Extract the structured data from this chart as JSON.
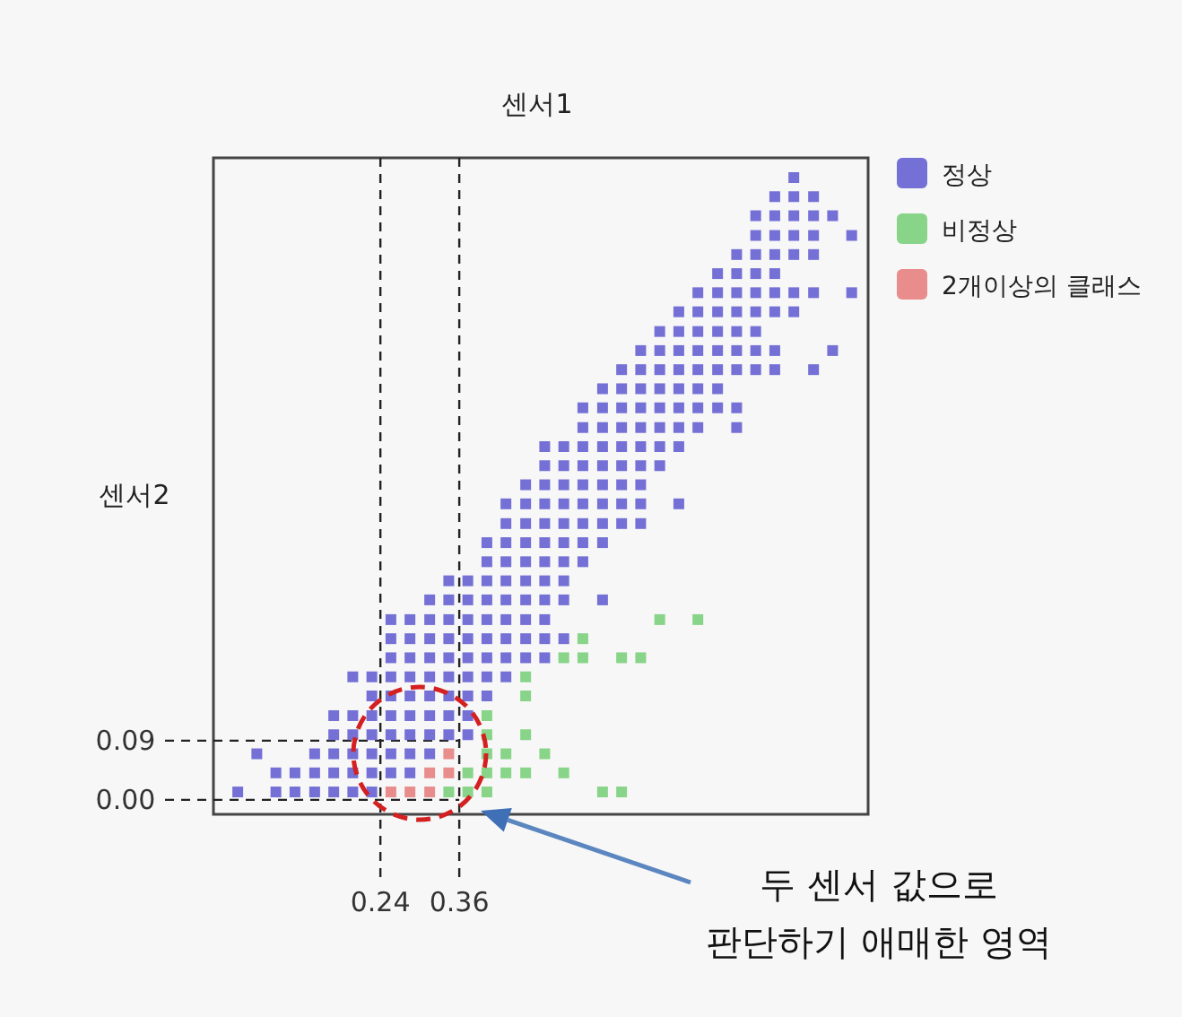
{
  "chart_data": {
    "type": "scatter",
    "xlabel": "센서1",
    "ylabel": "센서2",
    "xlim": [
      -0.014,
      0.982
    ],
    "ylim": [
      -0.022,
      0.976
    ],
    "xticks": [
      0.24,
      0.36
    ],
    "yticks": [
      {
        "value": 0,
        "label": "0.00"
      },
      0.09
    ],
    "grid": false,
    "legend": "right",
    "marker": "square",
    "ref_lines": [
      {
        "axis": "x",
        "value": 0.24,
        "line_style": "dashed"
      },
      {
        "axis": "x",
        "value": 0.36,
        "line_style": "dashed"
      },
      {
        "axis": "y",
        "value": 0.09,
        "line_style": "dashed"
      },
      {
        "axis": "y",
        "value": 0,
        "line_style": "dashed"
      }
    ],
    "annotations": [
      "두 센서 값으로\n판단하기 애매한 영역"
    ],
    "series": [
      {
        "name": "정상",
        "color": "#7470d6",
        "x": [
          0.023,
          0.081,
          0.11,
          0.14,
          0.169,
          0.198,
          0.227,
          0.081,
          0.11,
          0.14,
          0.169,
          0.198,
          0.227,
          0.256,
          0.285,
          0.052,
          0.14,
          0.169,
          0.198,
          0.227,
          0.256,
          0.285,
          0.315,
          0.169,
          0.198,
          0.227,
          0.256,
          0.285,
          0.315,
          0.344,
          0.373,
          0.169,
          0.198,
          0.227,
          0.256,
          0.285,
          0.315,
          0.344,
          0.373,
          0.227,
          0.256,
          0.285,
          0.315,
          0.344,
          0.373,
          0.402,
          0.198,
          0.227,
          0.256,
          0.285,
          0.315,
          0.344,
          0.373,
          0.402,
          0.431,
          0.256,
          0.285,
          0.315,
          0.344,
          0.373,
          0.402,
          0.431,
          0.461,
          0.49,
          0.256,
          0.285,
          0.315,
          0.344,
          0.373,
          0.402,
          0.431,
          0.461,
          0.49,
          0.519,
          0.256,
          0.285,
          0.315,
          0.344,
          0.373,
          0.402,
          0.431,
          0.461,
          0.49,
          0.315,
          0.344,
          0.373,
          0.402,
          0.431,
          0.461,
          0.49,
          0.519,
          0.578,
          0.344,
          0.373,
          0.402,
          0.431,
          0.461,
          0.49,
          0.519,
          0.402,
          0.431,
          0.461,
          0.49,
          0.519,
          0.548,
          0.402,
          0.431,
          0.461,
          0.49,
          0.519,
          0.548,
          0.578,
          0.431,
          0.461,
          0.49,
          0.519,
          0.548,
          0.578,
          0.607,
          0.636,
          0.431,
          0.461,
          0.49,
          0.519,
          0.548,
          0.578,
          0.607,
          0.636,
          0.694,
          0.461,
          0.49,
          0.519,
          0.548,
          0.578,
          0.607,
          0.636,
          0.49,
          0.519,
          0.548,
          0.578,
          0.607,
          0.636,
          0.665,
          0.49,
          0.519,
          0.548,
          0.578,
          0.607,
          0.636,
          0.665,
          0.694,
          0.548,
          0.578,
          0.607,
          0.636,
          0.665,
          0.694,
          0.723,
          0.782,
          0.548,
          0.578,
          0.607,
          0.636,
          0.665,
          0.694,
          0.723,
          0.753,
          0.782,
          0.578,
          0.607,
          0.636,
          0.665,
          0.694,
          0.723,
          0.753,
          0.607,
          0.636,
          0.665,
          0.694,
          0.723,
          0.753,
          0.782,
          0.811,
          0.84,
          0.899,
          0.636,
          0.665,
          0.694,
          0.723,
          0.753,
          0.782,
          0.811,
          0.84,
          0.928,
          0.665,
          0.694,
          0.723,
          0.753,
          0.782,
          0.811,
          0.694,
          0.723,
          0.753,
          0.782,
          0.811,
          0.84,
          0.869,
          0.723,
          0.753,
          0.782,
          0.811,
          0.84,
          0.869,
          0.899,
          0.957,
          0.753,
          0.782,
          0.811,
          0.84,
          0.782,
          0.811,
          0.84,
          0.869,
          0.899,
          0.811,
          0.84,
          0.869,
          0.899,
          0.957,
          0.811,
          0.84,
          0.869,
          0.899,
          0.928,
          0.84,
          0.869,
          0.899,
          0.869
        ],
        "values": [
          0.012,
          0.012,
          0.012,
          0.012,
          0.012,
          0.012,
          0.012,
          0.041,
          0.041,
          0.041,
          0.041,
          0.041,
          0.041,
          0.041,
          0.041,
          0.07,
          0.07,
          0.07,
          0.07,
          0.07,
          0.07,
          0.07,
          0.07,
          0.099,
          0.099,
          0.099,
          0.099,
          0.099,
          0.099,
          0.099,
          0.099,
          0.128,
          0.128,
          0.128,
          0.128,
          0.128,
          0.128,
          0.128,
          0.128,
          0.158,
          0.158,
          0.158,
          0.158,
          0.158,
          0.158,
          0.158,
          0.187,
          0.187,
          0.187,
          0.187,
          0.187,
          0.187,
          0.187,
          0.187,
          0.187,
          0.216,
          0.216,
          0.216,
          0.216,
          0.216,
          0.216,
          0.216,
          0.216,
          0.216,
          0.245,
          0.245,
          0.245,
          0.245,
          0.245,
          0.245,
          0.245,
          0.245,
          0.245,
          0.245,
          0.274,
          0.274,
          0.274,
          0.274,
          0.274,
          0.274,
          0.274,
          0.274,
          0.274,
          0.304,
          0.304,
          0.304,
          0.304,
          0.304,
          0.304,
          0.304,
          0.304,
          0.304,
          0.333,
          0.333,
          0.333,
          0.333,
          0.333,
          0.333,
          0.333,
          0.362,
          0.362,
          0.362,
          0.362,
          0.362,
          0.362,
          0.391,
          0.391,
          0.391,
          0.391,
          0.391,
          0.391,
          0.391,
          0.42,
          0.42,
          0.42,
          0.42,
          0.42,
          0.42,
          0.42,
          0.42,
          0.45,
          0.45,
          0.45,
          0.45,
          0.45,
          0.45,
          0.45,
          0.45,
          0.45,
          0.479,
          0.479,
          0.479,
          0.479,
          0.479,
          0.479,
          0.479,
          0.508,
          0.508,
          0.508,
          0.508,
          0.508,
          0.508,
          0.508,
          0.537,
          0.537,
          0.537,
          0.537,
          0.537,
          0.537,
          0.537,
          0.537,
          0.566,
          0.566,
          0.566,
          0.566,
          0.566,
          0.566,
          0.566,
          0.566,
          0.596,
          0.596,
          0.596,
          0.596,
          0.596,
          0.596,
          0.596,
          0.596,
          0.596,
          0.625,
          0.625,
          0.625,
          0.625,
          0.625,
          0.625,
          0.625,
          0.654,
          0.654,
          0.654,
          0.654,
          0.654,
          0.654,
          0.654,
          0.654,
          0.654,
          0.654,
          0.683,
          0.683,
          0.683,
          0.683,
          0.683,
          0.683,
          0.683,
          0.683,
          0.683,
          0.712,
          0.712,
          0.712,
          0.712,
          0.712,
          0.712,
          0.742,
          0.742,
          0.742,
          0.742,
          0.742,
          0.742,
          0.742,
          0.771,
          0.771,
          0.771,
          0.771,
          0.771,
          0.771,
          0.771,
          0.771,
          0.8,
          0.8,
          0.8,
          0.8,
          0.829,
          0.829,
          0.829,
          0.829,
          0.829,
          0.858,
          0.858,
          0.858,
          0.858,
          0.858,
          0.888,
          0.888,
          0.888,
          0.888,
          0.888,
          0.917,
          0.917,
          0.917,
          0.946
        ]
      },
      {
        "name": "비정상",
        "color": "#88d488",
        "x": [
          0.344,
          0.373,
          0.402,
          0.578,
          0.607,
          0.373,
          0.402,
          0.431,
          0.461,
          0.519,
          0.402,
          0.431,
          0.49,
          0.402,
          0.461,
          0.402,
          0.461,
          0.461,
          0.519,
          0.548,
          0.607,
          0.636,
          0.548,
          0.665,
          0.723
        ],
        "values": [
          0.012,
          0.012,
          0.012,
          0.012,
          0.012,
          0.041,
          0.041,
          0.041,
          0.041,
          0.041,
          0.07,
          0.07,
          0.07,
          0.099,
          0.099,
          0.128,
          0.158,
          0.187,
          0.216,
          0.216,
          0.216,
          0.216,
          0.245,
          0.274,
          0.274
        ]
      },
      {
        "name": "2개이상의 클래스",
        "color": "#e88c8c",
        "x": [
          0.256,
          0.285,
          0.315,
          0.315,
          0.344,
          0.344
        ],
        "values": [
          0.012,
          0.012,
          0.012,
          0.041,
          0.041,
          0.07
        ]
      }
    ]
  }
}
